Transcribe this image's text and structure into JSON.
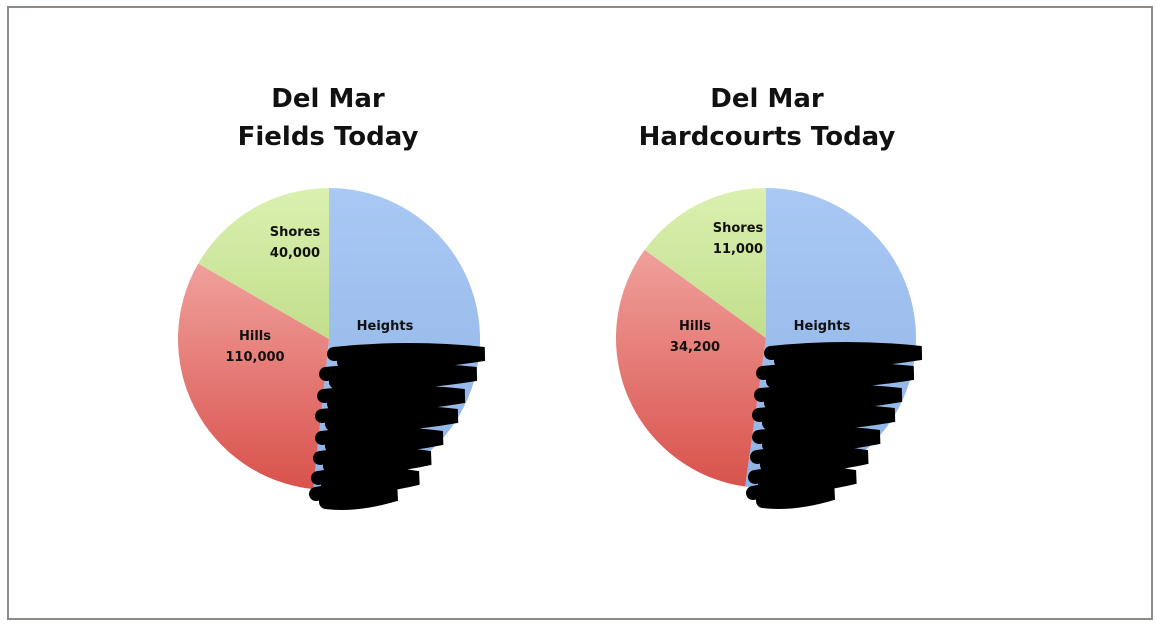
{
  "chart_data": [
    {
      "type": "pie",
      "title": "Del Mar\nFields Today",
      "slices": [
        {
          "label": "Heights",
          "value": null,
          "value_text": "",
          "color": "#a9c8f0"
        },
        {
          "label": "Hills",
          "value": 110000,
          "value_text": "110,000",
          "color": "#e5706c"
        },
        {
          "label": "Shores",
          "value": 40000,
          "value_text": "40,000",
          "color": "#cfe8a0"
        }
      ]
    },
    {
      "type": "pie",
      "title": "Del Mar\nHardcourts Today",
      "slices": [
        {
          "label": "Heights",
          "value": null,
          "value_text": "",
          "color": "#a9c8f0"
        },
        {
          "label": "Hills",
          "value": 34200,
          "value_text": "34,200",
          "color": "#e5706c"
        },
        {
          "label": "Shores",
          "value": 11000,
          "value_text": "11,000",
          "color": "#cfe8a0"
        }
      ]
    }
  ]
}
